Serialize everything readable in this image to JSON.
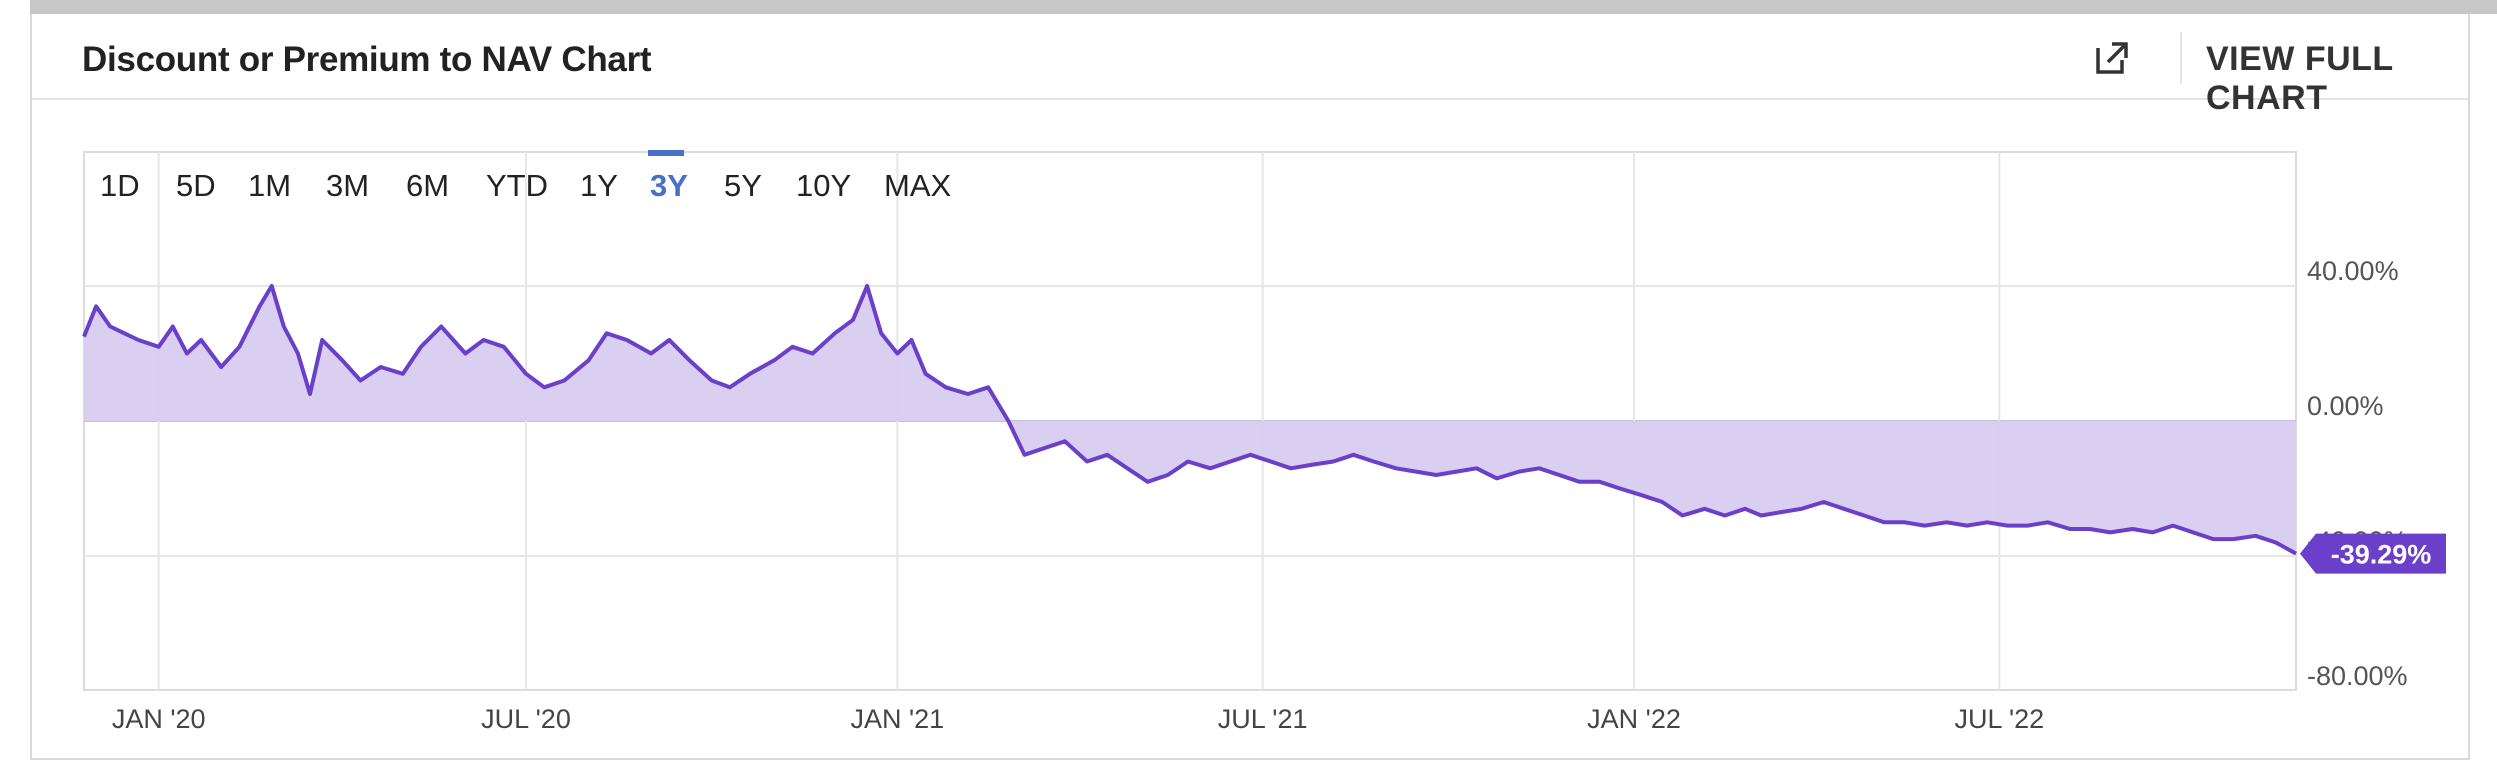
{
  "header": {
    "title": "Discount or Premium to NAV Chart",
    "external_icon": "external-link-icon",
    "view_full_chart_label": "VIEW FULL CHART"
  },
  "ranges": {
    "items": [
      "1D",
      "5D",
      "1M",
      "3M",
      "6M",
      "YTD",
      "1Y",
      "3Y",
      "5Y",
      "10Y",
      "MAX"
    ],
    "active": "3Y"
  },
  "colors": {
    "line": "#6a3fc9",
    "fill": "#d8ccf0",
    "accent": "#4a6fc7",
    "badge": "#6a3fc9"
  },
  "chart_data": {
    "type": "area",
    "title": "Discount or Premium to NAV Chart",
    "xlabel": "",
    "ylabel": "",
    "x_tick_labels": [
      "JAN '20",
      "JUL '20",
      "JAN '21",
      "JUL '21",
      "JAN '22",
      "JUL '22"
    ],
    "y_tick_labels": [
      "40.00%",
      "0.00%",
      "-40.00%",
      "-80.00%"
    ],
    "ylim": [
      -80,
      40
    ],
    "grid": true,
    "last_value_label": "-39.29%",
    "series": [
      {
        "values": [
          [
            "2019-11-25",
            25
          ],
          [
            "2019-12-01",
            34
          ],
          [
            "2019-12-08",
            28
          ],
          [
            "2019-12-15",
            26
          ],
          [
            "2019-12-22",
            24
          ],
          [
            "2020-01-01",
            22
          ],
          [
            "2020-01-08",
            28
          ],
          [
            "2020-01-15",
            20
          ],
          [
            "2020-01-22",
            24
          ],
          [
            "2020-02-01",
            16
          ],
          [
            "2020-02-10",
            22
          ],
          [
            "2020-02-20",
            34
          ],
          [
            "2020-02-26",
            40
          ],
          [
            "2020-03-03",
            28
          ],
          [
            "2020-03-10",
            20
          ],
          [
            "2020-03-16",
            8
          ],
          [
            "2020-03-22",
            24
          ],
          [
            "2020-04-01",
            18
          ],
          [
            "2020-04-10",
            12
          ],
          [
            "2020-04-20",
            16
          ],
          [
            "2020-05-01",
            14
          ],
          [
            "2020-05-10",
            22
          ],
          [
            "2020-05-20",
            28
          ],
          [
            "2020-06-01",
            20
          ],
          [
            "2020-06-10",
            24
          ],
          [
            "2020-06-20",
            22
          ],
          [
            "2020-07-01",
            14
          ],
          [
            "2020-07-10",
            10
          ],
          [
            "2020-07-20",
            12
          ],
          [
            "2020-08-01",
            18
          ],
          [
            "2020-08-10",
            26
          ],
          [
            "2020-08-20",
            24
          ],
          [
            "2020-09-01",
            20
          ],
          [
            "2020-09-10",
            24
          ],
          [
            "2020-09-20",
            18
          ],
          [
            "2020-10-01",
            12
          ],
          [
            "2020-10-10",
            10
          ],
          [
            "2020-10-20",
            14
          ],
          [
            "2020-11-01",
            18
          ],
          [
            "2020-11-10",
            22
          ],
          [
            "2020-11-20",
            20
          ],
          [
            "2020-12-01",
            26
          ],
          [
            "2020-12-10",
            30
          ],
          [
            "2020-12-17",
            40
          ],
          [
            "2020-12-24",
            26
          ],
          [
            "2021-01-01",
            20
          ],
          [
            "2021-01-08",
            24
          ],
          [
            "2021-01-15",
            14
          ],
          [
            "2021-01-25",
            10
          ],
          [
            "2021-02-05",
            8
          ],
          [
            "2021-02-15",
            10
          ],
          [
            "2021-02-25",
            0
          ],
          [
            "2021-03-05",
            -10
          ],
          [
            "2021-03-15",
            -8
          ],
          [
            "2021-03-25",
            -6
          ],
          [
            "2021-04-05",
            -12
          ],
          [
            "2021-04-15",
            -10
          ],
          [
            "2021-04-25",
            -14
          ],
          [
            "2021-05-05",
            -18
          ],
          [
            "2021-05-15",
            -16
          ],
          [
            "2021-05-25",
            -12
          ],
          [
            "2021-06-05",
            -14
          ],
          [
            "2021-06-15",
            -12
          ],
          [
            "2021-06-25",
            -10
          ],
          [
            "2021-07-05",
            -12
          ],
          [
            "2021-07-15",
            -14
          ],
          [
            "2021-07-25",
            -13
          ],
          [
            "2021-08-05",
            -12
          ],
          [
            "2021-08-15",
            -10
          ],
          [
            "2021-08-25",
            -12
          ],
          [
            "2021-09-05",
            -14
          ],
          [
            "2021-09-15",
            -15
          ],
          [
            "2021-09-25",
            -16
          ],
          [
            "2021-10-05",
            -15
          ],
          [
            "2021-10-15",
            -14
          ],
          [
            "2021-10-25",
            -17
          ],
          [
            "2021-11-05",
            -15
          ],
          [
            "2021-11-15",
            -14
          ],
          [
            "2021-11-25",
            -16
          ],
          [
            "2021-12-05",
            -18
          ],
          [
            "2021-12-15",
            -18
          ],
          [
            "2021-12-25",
            -20
          ],
          [
            "2022-01-05",
            -22
          ],
          [
            "2022-01-15",
            -24
          ],
          [
            "2022-01-25",
            -28
          ],
          [
            "2022-02-05",
            -26
          ],
          [
            "2022-02-15",
            -28
          ],
          [
            "2022-02-25",
            -26
          ],
          [
            "2022-03-05",
            -28
          ],
          [
            "2022-03-15",
            -27
          ],
          [
            "2022-03-25",
            -26
          ],
          [
            "2022-04-05",
            -24
          ],
          [
            "2022-04-15",
            -26
          ],
          [
            "2022-04-25",
            -28
          ],
          [
            "2022-05-05",
            -30
          ],
          [
            "2022-05-15",
            -30
          ],
          [
            "2022-05-25",
            -31
          ],
          [
            "2022-06-05",
            -30
          ],
          [
            "2022-06-15",
            -31
          ],
          [
            "2022-06-25",
            -30
          ],
          [
            "2022-07-05",
            -31
          ],
          [
            "2022-07-15",
            -31
          ],
          [
            "2022-07-25",
            -30
          ],
          [
            "2022-08-05",
            -32
          ],
          [
            "2022-08-15",
            -32
          ],
          [
            "2022-08-25",
            -33
          ],
          [
            "2022-09-05",
            -32
          ],
          [
            "2022-09-15",
            -33
          ],
          [
            "2022-09-25",
            -31
          ],
          [
            "2022-10-05",
            -33
          ],
          [
            "2022-10-15",
            -35
          ],
          [
            "2022-10-25",
            -35
          ],
          [
            "2022-11-05",
            -34
          ],
          [
            "2022-11-15",
            -36
          ],
          [
            "2022-11-25",
            -39.29
          ]
        ]
      }
    ]
  }
}
